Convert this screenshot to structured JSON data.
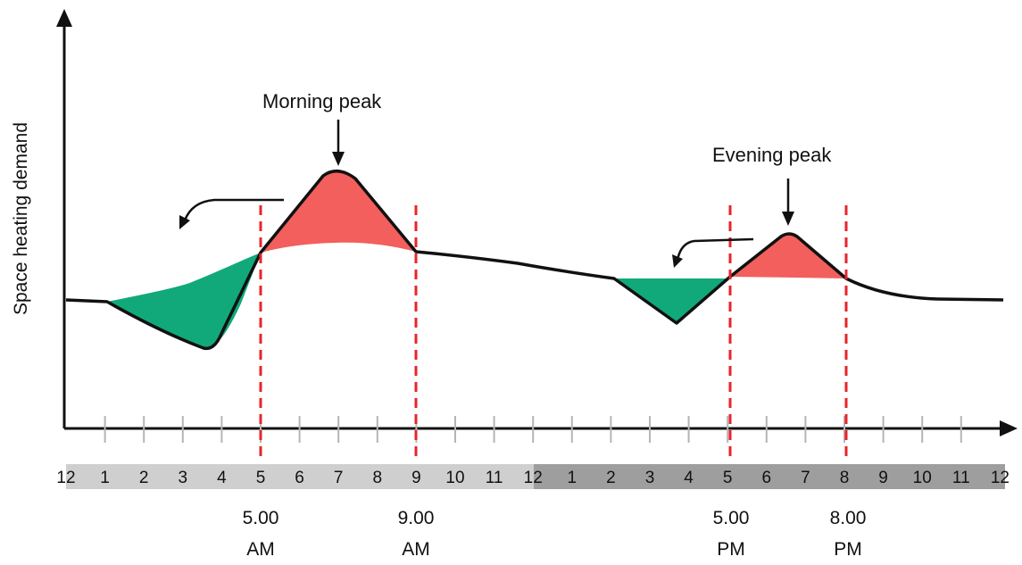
{
  "y_axis_label": "Space heating demand",
  "annotations": {
    "morning_peak": "Morning peak",
    "evening_peak": "Evening peak"
  },
  "hour_ticks": [
    "12",
    "1",
    "2",
    "3",
    "4",
    "5",
    "6",
    "7",
    "8",
    "9",
    "10",
    "11",
    "12",
    "1",
    "2",
    "3",
    "4",
    "5",
    "6",
    "7",
    "8",
    "9",
    "10",
    "11",
    "12"
  ],
  "time_markers": [
    {
      "line1": "5.00",
      "line2": "AM"
    },
    {
      "line1": "9.00",
      "line2": "AM"
    },
    {
      "line1": "5.00",
      "line2": "PM"
    },
    {
      "line1": "8.00",
      "line2": "PM"
    }
  ],
  "colors": {
    "shifted_load": "#f25f5c",
    "reduced_load": "#11a97a",
    "demand_curve": "#111111",
    "peak_boundary": "#e8242a",
    "day_band": "#cfcfcf",
    "night_band": "#9e9e9e"
  }
}
